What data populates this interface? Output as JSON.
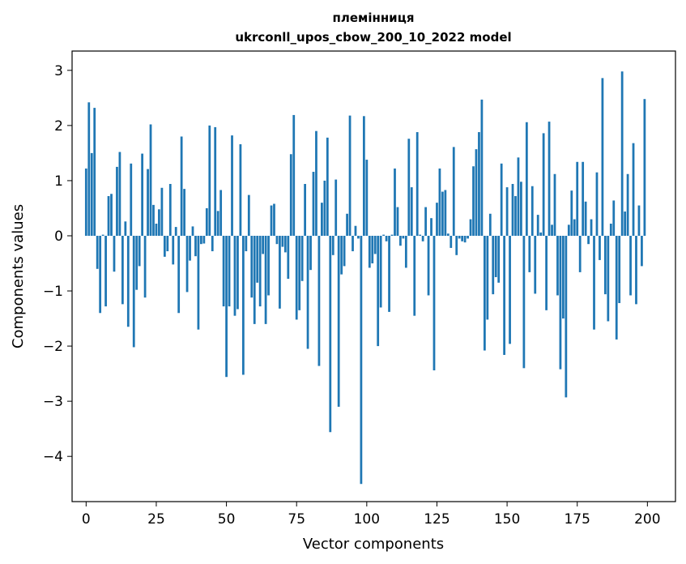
{
  "chart_data": {
    "type": "bar",
    "title": "племінниця",
    "subtitle": "ukrconll_upos_cbow_200_10_2022 model",
    "xlabel": "Vector components",
    "ylabel": "Components values",
    "xlim": [
      -5,
      210
    ],
    "ylim": [
      -4.82,
      3.35
    ],
    "xticks": [
      0,
      25,
      50,
      75,
      100,
      125,
      150,
      175,
      200
    ],
    "yticks": [
      -4,
      -3,
      -2,
      -1,
      0,
      1,
      2,
      3
    ],
    "bar_color": "#1f77b4",
    "grid": false,
    "legend": "none",
    "values": [
      1.22,
      2.42,
      1.5,
      2.32,
      -0.6,
      -1.4,
      0.02,
      -1.28,
      0.72,
      0.76,
      -0.65,
      1.25,
      1.52,
      -1.24,
      0.26,
      -1.65,
      1.31,
      -2.02,
      -0.98,
      -0.55,
      1.49,
      -1.12,
      1.21,
      2.02,
      0.56,
      0.22,
      0.48,
      0.87,
      -0.38,
      -0.28,
      0.94,
      -0.52,
      0.16,
      -1.4,
      1.8,
      0.85,
      -1.02,
      -0.45,
      0.17,
      -0.37,
      -1.7,
      -0.15,
      -0.14,
      0.5,
      2.0,
      -0.28,
      1.97,
      0.45,
      0.83,
      -1.28,
      -2.56,
      -1.28,
      1.82,
      -1.45,
      -1.33,
      1.66,
      -2.52,
      -0.28,
      0.74,
      -1.12,
      -1.6,
      -0.85,
      -1.28,
      -0.33,
      -1.6,
      -1.08,
      0.55,
      0.58,
      -0.15,
      -1.32,
      -0.2,
      -0.3,
      -0.78,
      1.48,
      2.19,
      -1.52,
      -1.35,
      -0.82,
      0.94,
      -2.05,
      -0.62,
      1.16,
      1.9,
      -2.36,
      0.6,
      1.0,
      1.78,
      -3.56,
      -0.35,
      1.02,
      -3.1,
      -0.7,
      -0.55,
      0.4,
      2.18,
      -0.28,
      0.18,
      -0.05,
      -4.5,
      2.17,
      1.38,
      -0.58,
      -0.5,
      -0.33,
      -2.0,
      -1.3,
      0.02,
      -0.1,
      -1.38,
      0.02,
      1.22,
      0.52,
      -0.18,
      -0.05,
      -0.58,
      1.76,
      0.88,
      -1.45,
      1.88,
      0.02,
      -0.1,
      0.52,
      -1.08,
      0.32,
      -2.44,
      0.6,
      1.22,
      0.8,
      0.83,
      0.04,
      -0.22,
      1.61,
      -0.35,
      -0.05,
      -0.1,
      -0.12,
      -0.05,
      0.3,
      1.26,
      1.57,
      1.88,
      2.47,
      -2.08,
      -1.52,
      0.4,
      -1.06,
      -0.75,
      -0.85,
      1.31,
      -2.16,
      0.88,
      -1.96,
      0.94,
      0.72,
      1.42,
      0.98,
      -2.4,
      2.06,
      -0.66,
      0.9,
      -1.05,
      0.38,
      0.06,
      1.86,
      -1.35,
      2.07,
      0.2,
      1.12,
      -1.08,
      -2.42,
      -1.5,
      -2.93,
      0.2,
      0.82,
      0.3,
      1.34,
      -0.66,
      1.34,
      0.62,
      -0.15,
      0.3,
      -1.7,
      1.15,
      -0.44,
      2.86,
      -1.06,
      -1.55,
      0.22,
      0.64,
      -1.88,
      -1.22,
      2.98,
      0.44,
      1.12,
      -1.08,
      1.68,
      -1.24,
      0.55,
      -0.55,
      2.48
    ]
  }
}
